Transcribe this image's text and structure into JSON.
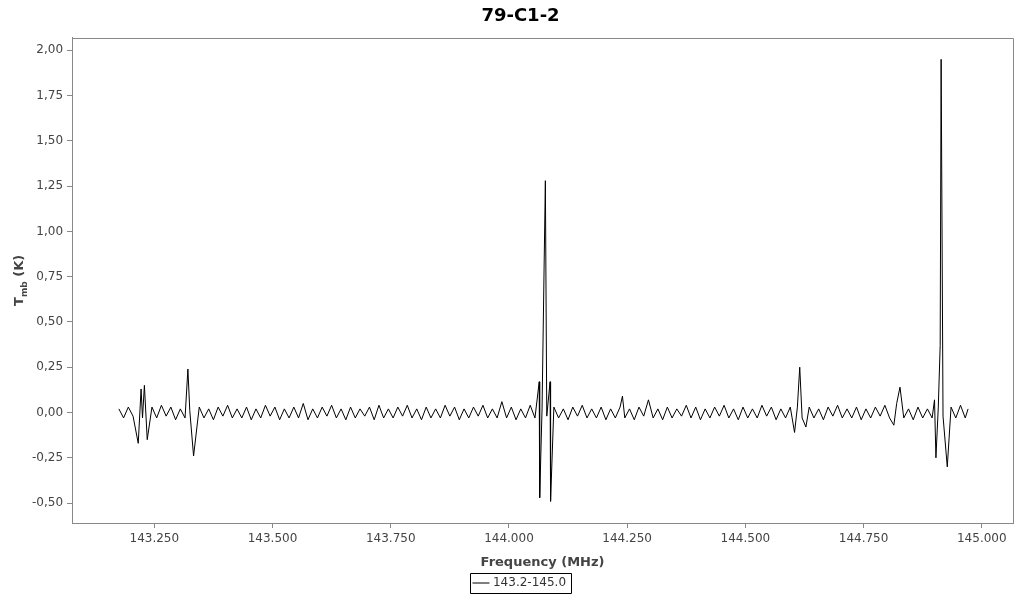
{
  "chart_data": {
    "type": "line",
    "title": "79-C1-2",
    "xlabel": "Frequency (MHz)",
    "ylabel": "T$_{mb}$ (K)",
    "xlim": [
      143076,
      145066
    ],
    "ylim": [
      -0.61,
      2.07
    ],
    "xticks": [
      {
        "value": 143250,
        "label": "143.250"
      },
      {
        "value": 143500,
        "label": "143.500"
      },
      {
        "value": 143750,
        "label": "143.750"
      },
      {
        "value": 144000,
        "label": "144.000"
      },
      {
        "value": 144250,
        "label": "144.250"
      },
      {
        "value": 144500,
        "label": "144.500"
      },
      {
        "value": 144750,
        "label": "144.750"
      },
      {
        "value": 145000,
        "label": "145.000"
      }
    ],
    "yticks": [
      {
        "value": -0.5,
        "label": "-0,50"
      },
      {
        "value": -0.25,
        "label": "-0,25"
      },
      {
        "value": 0,
        "label": "0,00"
      },
      {
        "value": 0.25,
        "label": "0,25"
      },
      {
        "value": 0.5,
        "label": "0,50"
      },
      {
        "value": 0.75,
        "label": "0,75"
      },
      {
        "value": 1,
        "label": "1,00"
      },
      {
        "value": 1.25,
        "label": "1,25"
      },
      {
        "value": 1.5,
        "label": "1,50"
      },
      {
        "value": 1.75,
        "label": "1,75"
      },
      {
        "value": 2,
        "label": "2,00"
      }
    ],
    "legend": "bottom",
    "marker": "none",
    "line_style": "solid",
    "series": [
      {
        "name": "143.2-145.0",
        "color": "#000000",
        "x": [
          143175,
          143185,
          143195,
          143205,
          143216,
          143222,
          143225,
          143229,
          143235,
          143245,
          143255,
          143265,
          143275,
          143285,
          143295,
          143305,
          143315,
          143321,
          143325,
          143333,
          143345,
          143355,
          143365,
          143375,
          143385,
          143395,
          143405,
          143415,
          143425,
          143435,
          143445,
          143455,
          143465,
          143475,
          143485,
          143495,
          143505,
          143515,
          143525,
          143535,
          143545,
          143555,
          143565,
          143575,
          143585,
          143595,
          143605,
          143615,
          143625,
          143635,
          143645,
          143655,
          143665,
          143675,
          143685,
          143695,
          143705,
          143715,
          143725,
          143735,
          143745,
          143755,
          143765,
          143775,
          143785,
          143795,
          143805,
          143815,
          143825,
          143835,
          143845,
          143855,
          143865,
          143875,
          143885,
          143895,
          143905,
          143915,
          143925,
          143935,
          143945,
          143955,
          143965,
          143975,
          143985,
          143995,
          144005,
          144015,
          144025,
          144035,
          144045,
          144055,
          144064,
          144065,
          144070,
          144077,
          144080,
          144087,
          144088,
          144095,
          144105,
          144115,
          144125,
          144135,
          144145,
          144155,
          144165,
          144175,
          144185,
          144195,
          144205,
          144215,
          144225,
          144235,
          144240,
          144245,
          144255,
          144265,
          144275,
          144285,
          144295,
          144305,
          144315,
          144325,
          144335,
          144345,
          144355,
          144365,
          144375,
          144385,
          144395,
          144405,
          144415,
          144425,
          144435,
          144445,
          144455,
          144465,
          144475,
          144485,
          144495,
          144505,
          144515,
          144525,
          144535,
          144545,
          144555,
          144565,
          144575,
          144585,
          144595,
          144604,
          144610,
          144615,
          144620,
          144628,
          144635,
          144645,
          144655,
          144665,
          144675,
          144685,
          144695,
          144705,
          144715,
          144725,
          144735,
          144745,
          144755,
          144765,
          144775,
          144785,
          144795,
          144805,
          144814,
          144820,
          144827,
          144835,
          144845,
          144855,
          144865,
          144875,
          144885,
          144895,
          144900,
          144903,
          144908,
          144912,
          144914,
          144918,
          144927,
          144935,
          144945,
          144955,
          144965,
          144971
        ],
        "values": [
          0.02,
          -0.03,
          0.03,
          -0.02,
          -0.17,
          0.13,
          -0.03,
          0.15,
          -0.15,
          0.03,
          -0.03,
          0.04,
          -0.02,
          0.03,
          -0.04,
          0.02,
          -0.03,
          0.24,
          0.01,
          -0.24,
          0.03,
          -0.03,
          0.02,
          -0.04,
          0.03,
          -0.02,
          0.04,
          -0.03,
          0.02,
          -0.03,
          0.03,
          -0.04,
          0.02,
          -0.03,
          0.04,
          -0.02,
          0.03,
          -0.04,
          0.02,
          -0.03,
          0.03,
          -0.03,
          0.05,
          -0.04,
          0.02,
          -0.03,
          0.03,
          -0.02,
          0.04,
          -0.03,
          0.02,
          -0.04,
          0.03,
          -0.03,
          0.02,
          -0.02,
          0.03,
          -0.04,
          0.04,
          -0.03,
          0.02,
          -0.03,
          0.03,
          -0.02,
          0.04,
          -0.03,
          0.02,
          -0.04,
          0.03,
          -0.03,
          0.02,
          -0.03,
          0.04,
          -0.02,
          0.03,
          -0.04,
          0.02,
          -0.03,
          0.03,
          -0.02,
          0.04,
          -0.03,
          0.02,
          -0.03,
          0.06,
          -0.03,
          0.03,
          -0.04,
          0.02,
          -0.03,
          0.04,
          -0.03,
          0.17,
          -0.47,
          0.02,
          1.28,
          -0.02,
          0.17,
          -0.49,
          0.03,
          -0.03,
          0.02,
          -0.04,
          0.03,
          -0.02,
          0.04,
          -0.03,
          0.02,
          -0.03,
          0.03,
          -0.04,
          0.02,
          -0.03,
          0.03,
          0.09,
          -0.03,
          0.02,
          -0.04,
          0.03,
          -0.02,
          0.07,
          -0.03,
          0.02,
          -0.04,
          0.03,
          -0.03,
          0.02,
          -0.02,
          0.04,
          -0.03,
          0.03,
          -0.04,
          0.02,
          -0.03,
          0.03,
          -0.02,
          0.04,
          -0.03,
          0.02,
          -0.04,
          0.03,
          -0.03,
          0.02,
          -0.03,
          0.04,
          -0.02,
          0.03,
          -0.04,
          0.02,
          -0.03,
          0.03,
          -0.11,
          0.03,
          0.25,
          -0.03,
          -0.08,
          0.03,
          -0.03,
          0.02,
          -0.04,
          0.03,
          -0.02,
          0.04,
          -0.03,
          0.02,
          -0.03,
          0.03,
          -0.04,
          0.02,
          -0.03,
          0.03,
          -0.02,
          0.04,
          -0.03,
          -0.07,
          0.05,
          0.14,
          -0.03,
          0.02,
          -0.04,
          0.03,
          -0.03,
          0.02,
          -0.03,
          0.07,
          -0.25,
          0.03,
          0.37,
          1.95,
          -0.02,
          -0.3,
          0.03,
          -0.03,
          0.04,
          -0.03,
          0.02
        ]
      }
    ]
  }
}
